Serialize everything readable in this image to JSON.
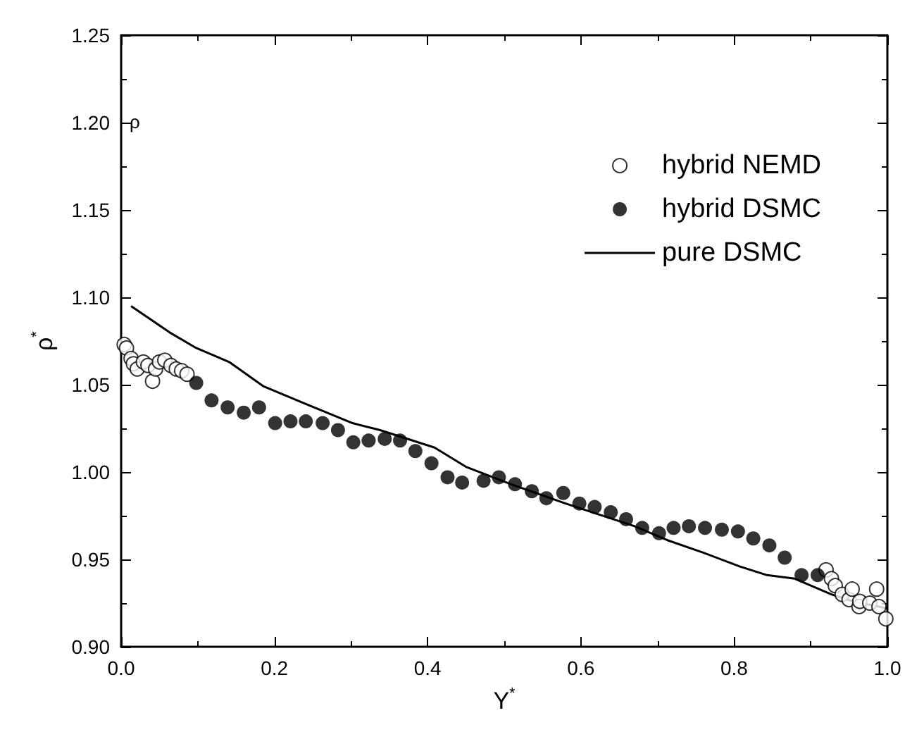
{
  "chart_data": {
    "type": "scatter",
    "xlabel": "Y$^{*}$",
    "ylabel": "ρ$^{*}$",
    "xlim": [
      0,
      1
    ],
    "xticks": [
      {
        "value": 0,
        "label": "0.0"
      },
      {
        "value": 0.2,
        "label": "0.2"
      },
      {
        "value": 0.4,
        "label": "0.4"
      },
      {
        "value": 0.6,
        "label": "0.6"
      },
      {
        "value": 0.8,
        "label": "0.8"
      },
      {
        "value": 1,
        "label": "1.0"
      }
    ],
    "ylim": [
      0.9,
      1.25
    ],
    "yticks": [
      {
        "value": 0.9,
        "label": "0.90"
      },
      {
        "value": 0.95,
        "label": "0.95"
      },
      {
        "value": 1,
        "label": "1.00"
      },
      {
        "value": 1.05,
        "label": "1.05"
      },
      {
        "value": 1.1,
        "label": "1.10"
      },
      {
        "value": 1.15,
        "label": "1.15"
      },
      {
        "value": 1.2,
        "label": "1.20"
      },
      {
        "value": 1.25,
        "label": "1.25"
      }
    ],
    "grid": false,
    "legend": "top right",
    "annotations": [
      "ρ"
    ],
    "series": [
      {
        "name": "hybrid NEMD",
        "marker": "circle",
        "color": "#ffffff",
        "x": [
          0.004,
          0.007,
          0.013,
          0.016,
          0.021,
          0.029,
          0.035,
          0.041,
          0.045,
          0.05,
          0.057,
          0.065,
          0.072,
          0.079,
          0.086,
          0.92,
          0.927,
          0.932,
          0.941,
          0.95,
          0.954,
          0.963,
          0.964,
          0.977,
          0.986,
          0.989,
          0.998
        ],
        "values": [
          1.073,
          1.071,
          1.065,
          1.062,
          1.059,
          1.063,
          1.061,
          1.052,
          1.059,
          1.063,
          1.064,
          1.061,
          1.059,
          1.058,
          1.056,
          0.944,
          0.939,
          0.935,
          0.93,
          0.927,
          0.933,
          0.923,
          0.926,
          0.925,
          0.933,
          0.923,
          0.916
        ]
      },
      {
        "name": "hybrid DSMC",
        "marker": "circle",
        "color": "#000000",
        "x": [
          0.098,
          0.118,
          0.139,
          0.16,
          0.18,
          0.201,
          0.221,
          0.241,
          0.263,
          0.283,
          0.303,
          0.323,
          0.344,
          0.364,
          0.384,
          0.405,
          0.426,
          0.445,
          0.473,
          0.493,
          0.514,
          0.536,
          0.555,
          0.577,
          0.598,
          0.618,
          0.639,
          0.659,
          0.68,
          0.702,
          0.721,
          0.741,
          0.762,
          0.784,
          0.805,
          0.825,
          0.846,
          0.866,
          0.888,
          0.909
        ],
        "values": [
          1.051,
          1.041,
          1.037,
          1.034,
          1.037,
          1.028,
          1.029,
          1.029,
          1.028,
          1.024,
          1.017,
          1.018,
          1.019,
          1.018,
          1.012,
          1.005,
          0.997,
          0.994,
          0.995,
          0.997,
          0.993,
          0.989,
          0.985,
          0.988,
          0.982,
          0.98,
          0.977,
          0.973,
          0.968,
          0.965,
          0.968,
          0.969,
          0.968,
          0.967,
          0.966,
          0.962,
          0.958,
          0.951,
          0.941,
          0.941
        ]
      },
      {
        "name": "pure DSMC",
        "type": "line",
        "marker": "none",
        "line_style": "solid",
        "color": "#000000",
        "x": [
          0.013,
          0.063,
          0.098,
          0.141,
          0.186,
          0.241,
          0.302,
          0.338,
          0.409,
          0.45,
          0.509,
          0.58,
          0.67,
          0.713,
          0.759,
          0.807,
          0.843,
          0.879,
          0.927,
          0.955,
          1.0
        ],
        "values": [
          1.095,
          1.08,
          1.071,
          1.063,
          1.049,
          1.039,
          1.028,
          1.024,
          1.014,
          1.003,
          0.993,
          0.982,
          0.969,
          0.961,
          0.954,
          0.946,
          0.941,
          0.939,
          0.93,
          0.926,
          0.922
        ]
      }
    ]
  }
}
